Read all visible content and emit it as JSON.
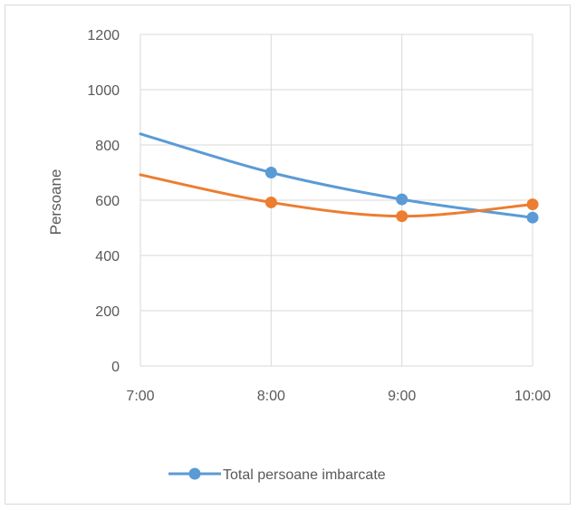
{
  "chart_data": {
    "type": "line",
    "title": "",
    "xlabel": "",
    "ylabel": "Persoane",
    "categories": [
      "7:00",
      "8:00",
      "9:00",
      "10:00"
    ],
    "ylim": [
      0,
      1200
    ],
    "yticks": [
      0,
      200,
      400,
      600,
      800,
      1000,
      1200
    ],
    "grid": true,
    "smooth": true,
    "legend_position": "bottom",
    "series": [
      {
        "name": "Total persoane imbarcate",
        "color": "#5b9bd5",
        "values": [
          840,
          700,
          603,
          537
        ]
      },
      {
        "color": "#ed7d31",
        "values": [
          692,
          592,
          542,
          585
        ]
      }
    ]
  }
}
